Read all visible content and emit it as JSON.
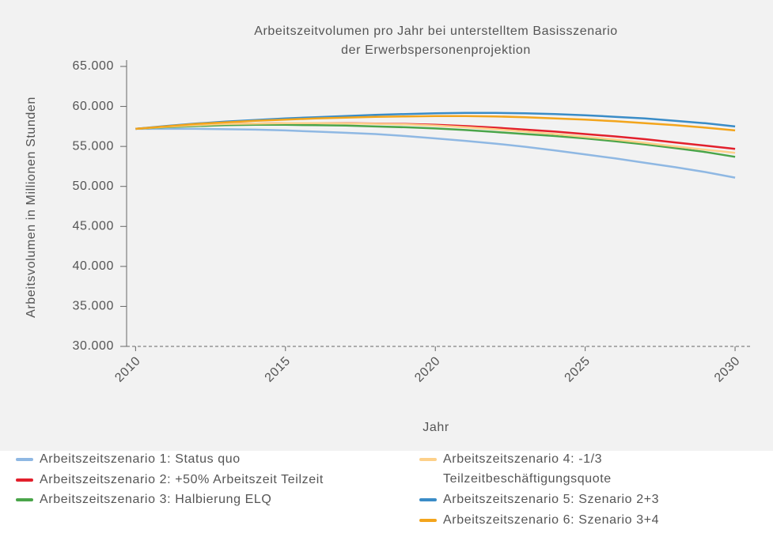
{
  "chart_data": {
    "type": "line",
    "title": [
      "Arbeitszeitvolumen pro Jahr bei unterstelltem Basisszenario",
      "der Erwerbspersonenprojektion"
    ],
    "x_label": "Jahr",
    "y_label": "Arbeitsvolumen in Millionen Stunden",
    "x": [
      2010,
      2011,
      2012,
      2013,
      2014,
      2015,
      2016,
      2017,
      2018,
      2019,
      2020,
      2021,
      2022,
      2023,
      2024,
      2025,
      2026,
      2027,
      2028,
      2029,
      2030
    ],
    "xlim": [
      2009.7,
      2030.5
    ],
    "xticks": [
      2010,
      2015,
      2020,
      2025,
      2030
    ],
    "ylim": [
      30000,
      65000
    ],
    "yticks": [
      {
        "value": 30000,
        "label": "30.000"
      },
      {
        "value": 35000,
        "label": "35.000"
      },
      {
        "value": 40000,
        "label": "40.000"
      },
      {
        "value": 45000,
        "label": "45.000"
      },
      {
        "value": 50000,
        "label": "50.000"
      },
      {
        "value": 55000,
        "label": "55.000"
      },
      {
        "value": 60000,
        "label": "60.000"
      },
      {
        "value": 65000,
        "label": "65.000"
      }
    ],
    "grid": false,
    "series": [
      {
        "name": "Arbeitszeitszenario 1: Status quo",
        "color": "#8fb8e3",
        "values": [
          57200,
          57200,
          57200,
          57150,
          57100,
          57000,
          56850,
          56700,
          56550,
          56300,
          56000,
          55700,
          55350,
          54950,
          54500,
          54000,
          53500,
          52950,
          52400,
          51800,
          51100
        ]
      },
      {
        "name": "Arbeitszeitszenario 2: +50% Arbeitszeit Teilzeit",
        "color": "#e2202c",
        "values": [
          57200,
          57450,
          57650,
          57800,
          57850,
          57900,
          57900,
          57900,
          57850,
          57800,
          57700,
          57550,
          57350,
          57100,
          56850,
          56550,
          56250,
          55900,
          55500,
          55100,
          54700
        ]
      },
      {
        "name": "Arbeitszeitszenario 3: Halbierung ELQ",
        "color": "#4aa54a",
        "values": [
          57200,
          57400,
          57550,
          57650,
          57700,
          57700,
          57650,
          57600,
          57500,
          57400,
          57250,
          57050,
          56800,
          56550,
          56300,
          56000,
          55650,
          55250,
          54800,
          54300,
          53700
        ]
      },
      {
        "name": "Arbeitszeitszenario 4: -1/3 Teilzeitbeschäftigungsquote",
        "color": "#fdd08a",
        "values": [
          57200,
          57450,
          57650,
          57800,
          57850,
          57900,
          57900,
          57880,
          57830,
          57750,
          57600,
          57400,
          57150,
          56850,
          56550,
          56200,
          55850,
          55450,
          55000,
          54600,
          54200
        ]
      },
      {
        "name": "Arbeitszeitszenario 5: Szenario 2+3",
        "color": "#3a8cc7",
        "values": [
          57200,
          57550,
          57850,
          58100,
          58300,
          58500,
          58650,
          58800,
          58950,
          59050,
          59150,
          59200,
          59200,
          59150,
          59050,
          58900,
          58700,
          58500,
          58200,
          57900,
          57500
        ]
      },
      {
        "name": "Arbeitszeitszenario 6: Szenario 3+4",
        "color": "#f3a51c",
        "values": [
          57200,
          57500,
          57800,
          58000,
          58200,
          58350,
          58500,
          58600,
          58700,
          58750,
          58800,
          58800,
          58750,
          58650,
          58500,
          58350,
          58150,
          57900,
          57650,
          57350,
          57000
        ]
      }
    ]
  }
}
